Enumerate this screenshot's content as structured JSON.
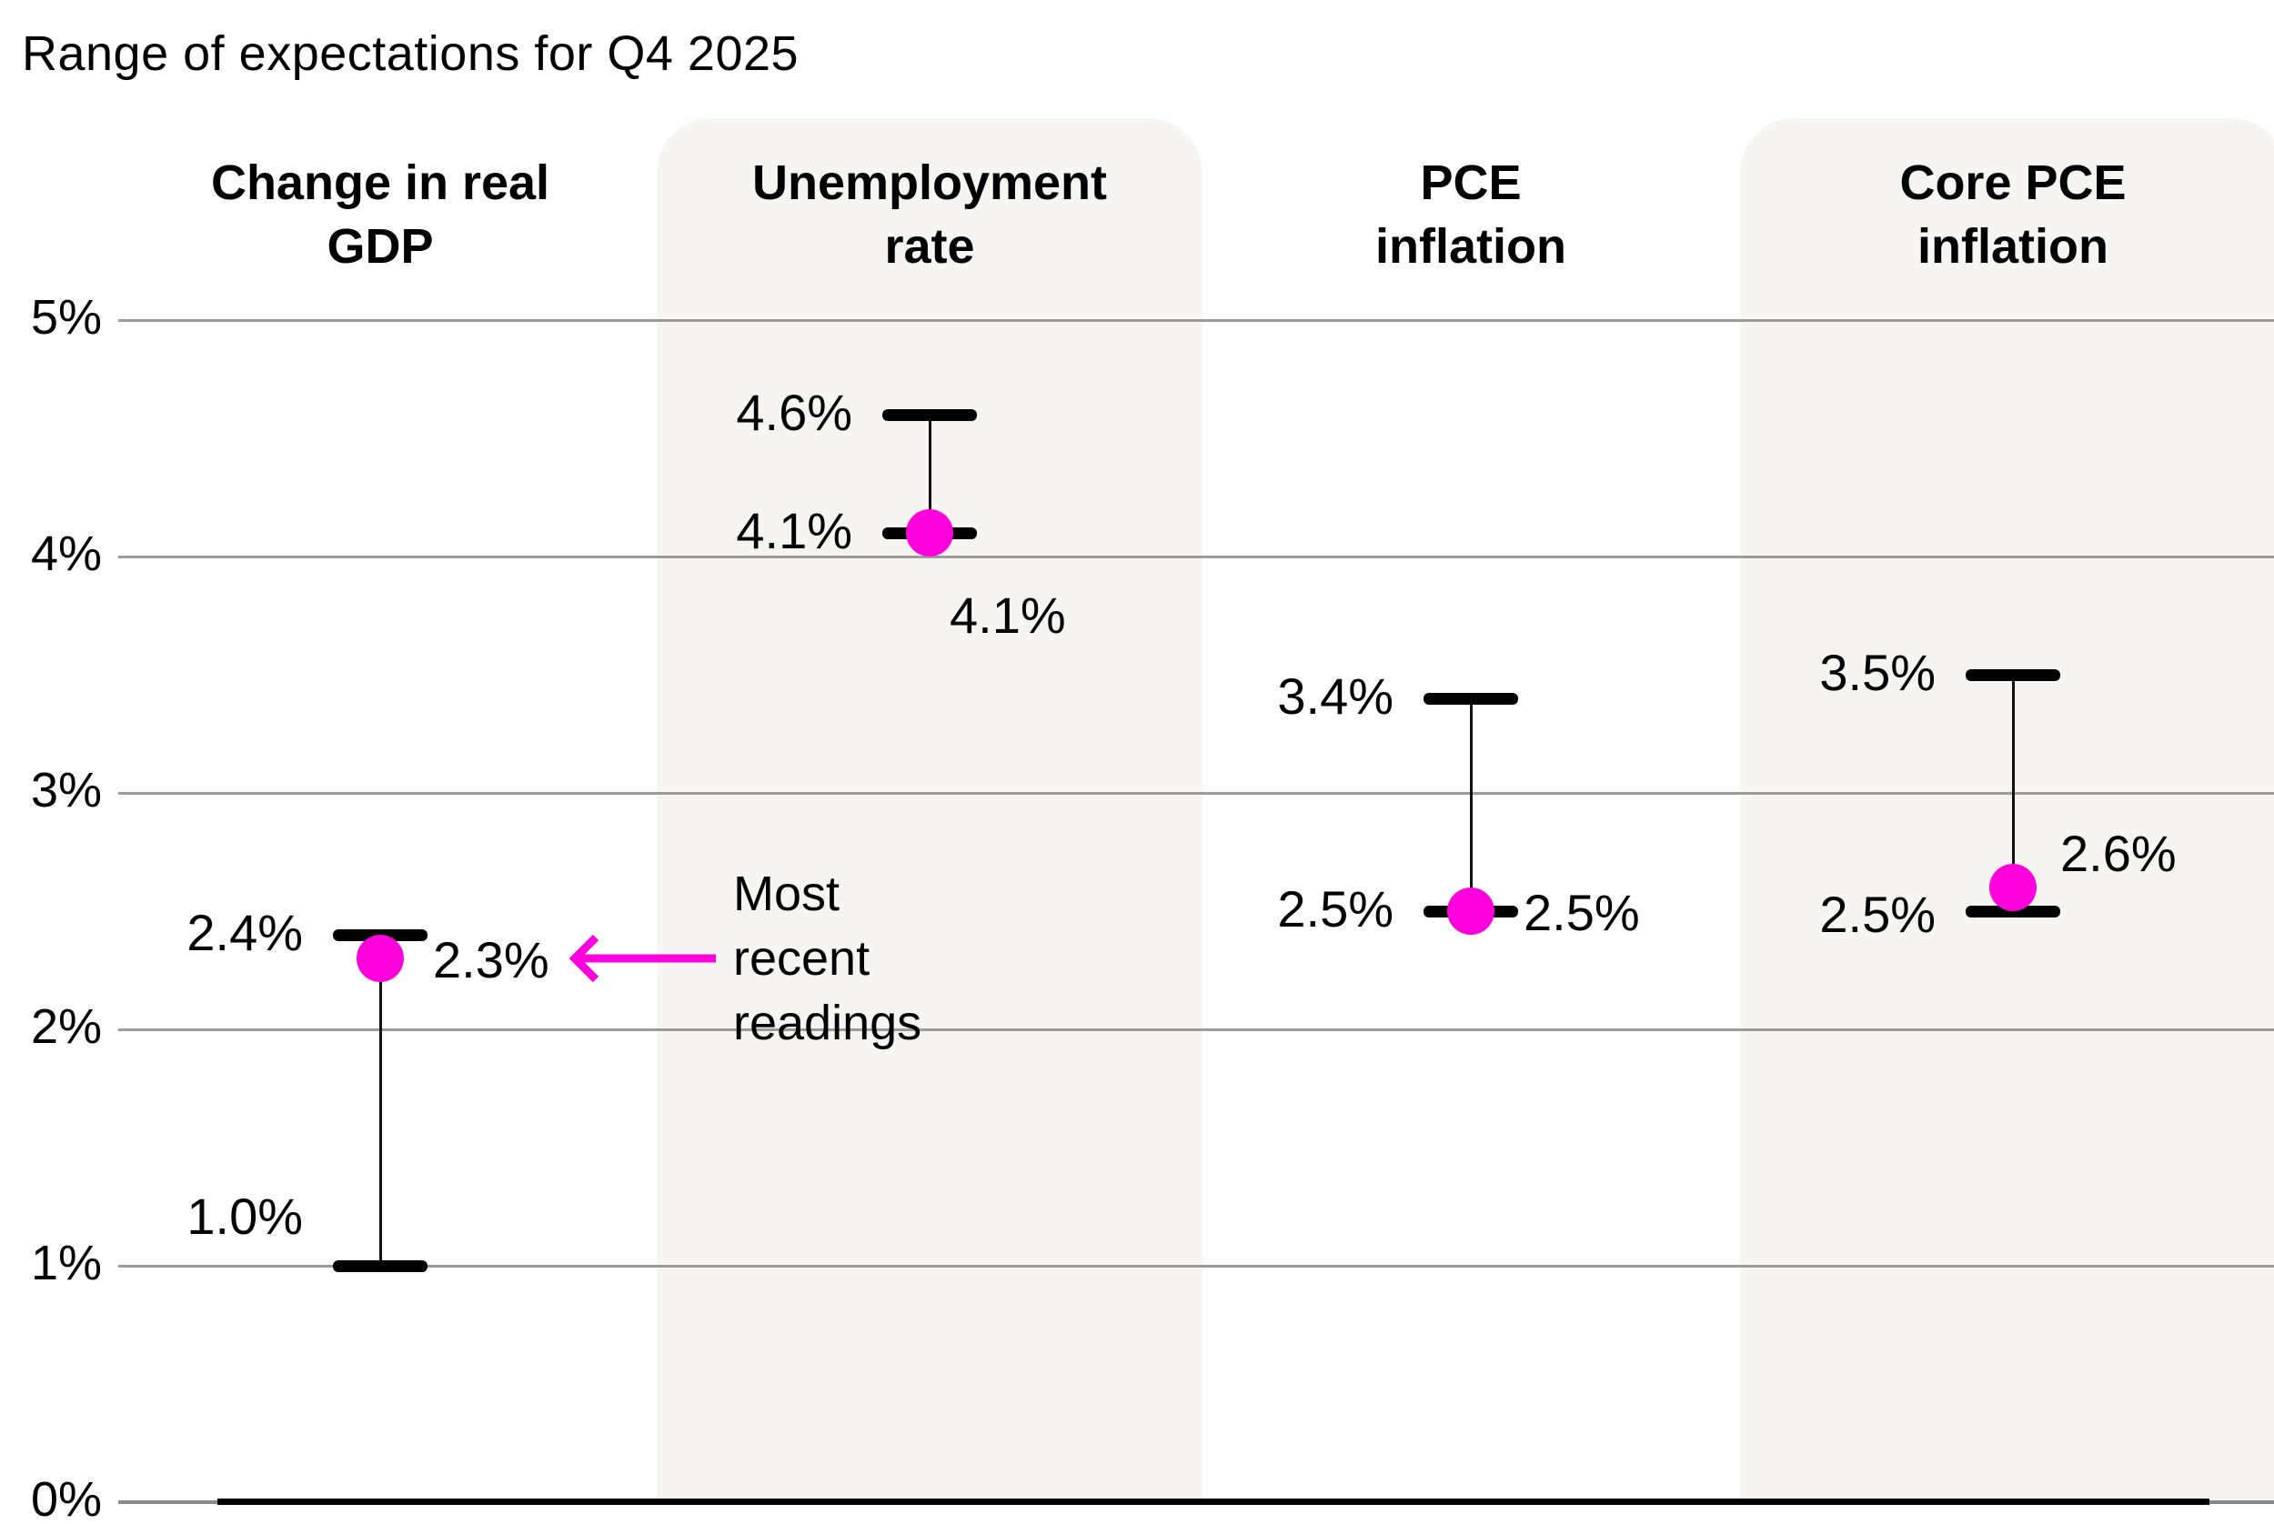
{
  "title": "Range of expectations for Q4 2025",
  "annotation": {
    "text": "Most recent readings"
  },
  "colors": {
    "accent": "#ff00dc",
    "band": "#f6f5f2",
    "grid": "#9b9b9b",
    "axis": "#000000",
    "axis_muted": "#8a8a8a",
    "text": "#000000"
  },
  "chart_data": {
    "type": "range-dot",
    "title": "Range of expectations for Q4 2025",
    "categories": [
      "Change in real GDP",
      "Unemployment rate",
      "PCE inflation",
      "Core PCE inflation"
    ],
    "series": [
      {
        "name": "Expectation range low",
        "values": [
          1.0,
          4.1,
          2.5,
          2.5
        ]
      },
      {
        "name": "Expectation range high",
        "values": [
          2.4,
          4.6,
          3.4,
          3.5
        ]
      },
      {
        "name": "Most recent reading",
        "values": [
          2.3,
          4.1,
          2.5,
          2.6
        ]
      }
    ],
    "ylabel": "",
    "xlabel": "",
    "ylim": [
      0,
      5
    ],
    "grid": true,
    "legend_position": "none",
    "annotation": "Most recent readings",
    "y_ticks": [
      {
        "label": "0%",
        "value": 0
      },
      {
        "label": "1%",
        "value": 1
      },
      {
        "label": "2%",
        "value": 2
      },
      {
        "label": "3%",
        "value": 3
      },
      {
        "label": "4%",
        "value": 4
      },
      {
        "label": "5%",
        "value": 5
      }
    ],
    "columns": [
      {
        "header_lines": "Change in real\nGDP",
        "low": 1.0,
        "high": 2.4,
        "current": 2.3,
        "low_label": "1.0%",
        "high_label": "2.4%",
        "current_label": "2.3%",
        "band": false,
        "low_pos": "above-left",
        "current_pos": "right"
      },
      {
        "header_lines": "Unemployment\nrate",
        "low": 4.1,
        "high": 4.6,
        "current": 4.1,
        "low_label": "4.1%",
        "high_label": "4.6%",
        "current_label": "4.1%",
        "band": true,
        "low_pos": "left",
        "current_pos": "below"
      },
      {
        "header_lines": "PCE\ninflation",
        "low": 2.5,
        "high": 3.4,
        "current": 2.5,
        "low_label": "2.5%",
        "high_label": "3.4%",
        "current_label": "2.5%",
        "band": false,
        "low_pos": "left",
        "current_pos": "right"
      },
      {
        "header_lines": "Core PCE\ninflation",
        "low": 2.5,
        "high": 3.5,
        "current": 2.6,
        "low_label": "2.5%",
        "high_label": "3.5%",
        "current_label": "2.6%",
        "band": true,
        "low_pos": "left-low",
        "current_pos": "upper-right"
      }
    ]
  }
}
